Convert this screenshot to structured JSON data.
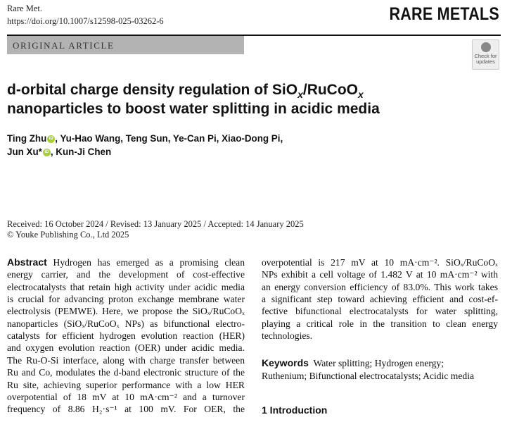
{
  "header": {
    "journal_abbrev": "Rare Met.",
    "doi": "https://doi.org/10.1007/s12598-025-03262-6",
    "journal_name": "RARE METALS",
    "article_type": "ORIGINAL ARTICLE",
    "badge": {
      "line1": "Check for",
      "line2": "updates"
    }
  },
  "title": {
    "l1a": "d-orbital charge density regulation of SiO",
    "sub": "x",
    "l1b": "/RuCoO",
    "l2": "nanoparticles to boost water splitting in acidic media"
  },
  "authors": {
    "a1": "Ting Zhu",
    "a1_rest": ", Yu-Hao Wang, Teng Sun, Ye-Can Pi, Xiao-Dong Pi,",
    "a2": "Jun Xu*",
    "a2_rest": ", Kun-Ji Chen",
    "orcid": "iD"
  },
  "dates": "Received: 16 October 2024 / Revised: 13 January 2025 / Accepted: 14 January 2025",
  "copyright": "© Youke Publishing Co., Ltd 2025",
  "abstract": {
    "heading": "Abstract",
    "left_lines": [
      "Hydrogen has emerged as a promising clean",
      "energy carrier, and the development of cost-effective",
      "electrocatalysts that retain high activity under acidic media",
      "is crucial for advancing proton exchange membrane water",
      "electrolysis (PEMWE). Here, we propose the SiOₓ/RuCoOₓ",
      "nanoparticles (SiOₓ/RuCoOₓ NPs) as bifunctional electro-",
      "catalysts for efficient hydrogen evolution reaction (HER)",
      "and oxygen evolution reaction (OER) under acidic media.",
      "The Ru-O-Si interface, along with charge transfer between",
      "Ru and Co, modulates the d-band electronic structure of the",
      "Ru site, achieving superior performance with a low HER",
      "overpotential of 18 mV at 10 mA·cm⁻² and a turnover",
      "frequency of 8.86 H₂·s⁻¹ at 100 mV. For OER, the"
    ],
    "right_lines": [
      "overpotential is 217 mV at 10 mA·cm⁻². SiOₓ/RuCoOₓ",
      "NPs exhibit a cell voltage of 1.482 V at 10 mA·cm⁻² with",
      "an energy conversion efficiency of 83.0%. This work takes",
      "a significant step toward achieving efficient and cost-ef-",
      "fective bifunctional electrocatalysts for water splitting,",
      "playing a critical role in the transition to clean energy",
      "technologies."
    ]
  },
  "keywords": {
    "heading": "Keywords",
    "line1": "Water splitting; Hydrogen energy;",
    "line2": "Ruthenium; Bifunctional electrocatalysts; Acidic media"
  },
  "section": "1  Introduction"
}
